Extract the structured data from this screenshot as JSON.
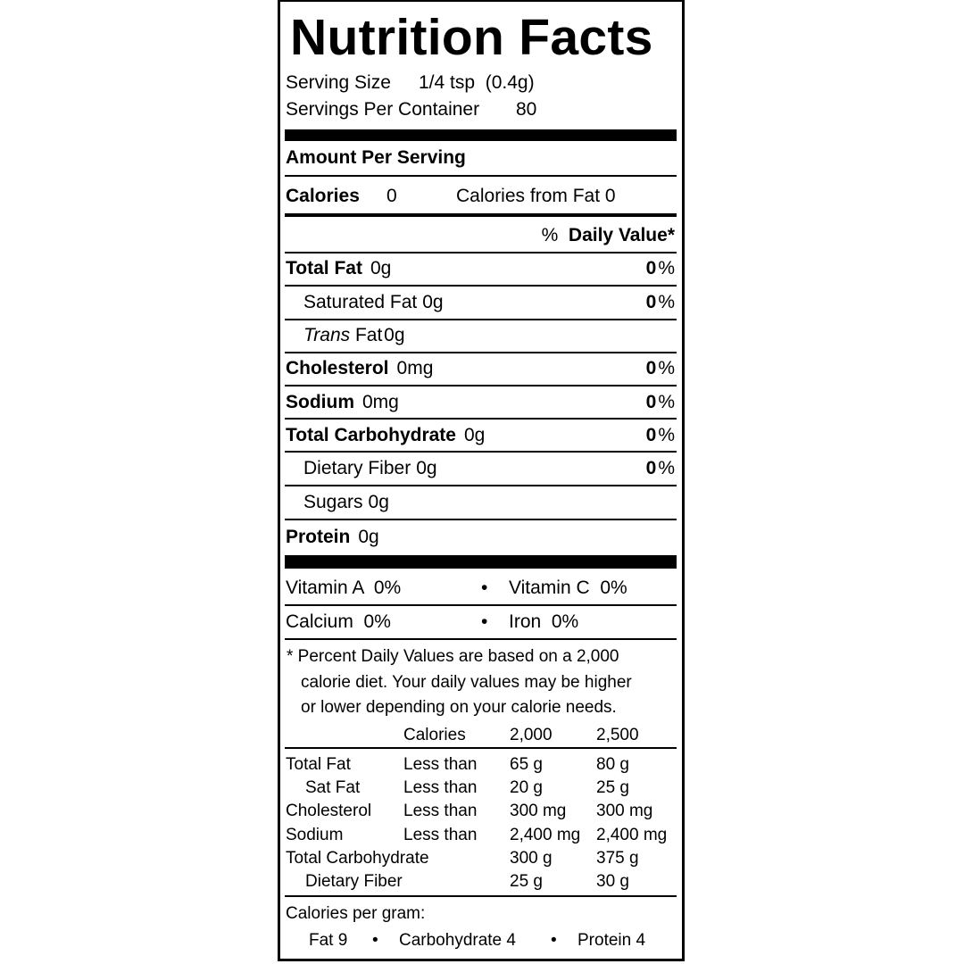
{
  "title": "Nutrition Facts",
  "serving_size_label": "Serving Size",
  "serving_size_value": "1/4 tsp  (0.4g)",
  "servings_label": "Servings Per Container",
  "servings_value": "80",
  "amount_per_serving": "Amount Per Serving",
  "calories_label": "Calories",
  "calories_value": "0",
  "calories_fat": "Calories from Fat 0",
  "dv_prefix": "%",
  "dv_header": "Daily Value*",
  "nutrients": [
    {
      "name": "Total Fat",
      "amount": "0g",
      "dv": "0",
      "bold": true
    },
    {
      "name": "Saturated Fat",
      "amount": "0g",
      "dv": "0",
      "bold": false
    },
    {
      "name": "Trans",
      "name2": "Fat",
      "amount": "0g",
      "dv": "",
      "bold": false
    },
    {
      "name": "Cholesterol",
      "amount": "0mg",
      "dv": "0",
      "bold": true
    },
    {
      "name": "Sodium",
      "amount": "0mg",
      "dv": "0",
      "bold": true
    },
    {
      "name": "Total Carbohydrate",
      "amount": "0g",
      "dv": "0",
      "bold": true
    },
    {
      "name": "Dietary Fiber",
      "amount": "0g",
      "dv": "0",
      "bold": false
    },
    {
      "name": "Sugars",
      "amount": "0g",
      "dv": "",
      "bold": false
    },
    {
      "name": "Protein",
      "amount": "0g",
      "dv": "",
      "bold": true
    }
  ],
  "pct": "%",
  "vitamins": [
    {
      "left": "Vitamin A  0%",
      "right": "Vitamin C  0%"
    },
    {
      "left": "Calcium  0%",
      "right": "Iron  0%"
    }
  ],
  "bullet": "•",
  "footnote": [
    "* Percent Daily Values are based on a 2,000",
    "calorie diet. Your daily values may be higher",
    "or lower depending on your calorie needs."
  ],
  "dv_table": {
    "header": [
      "",
      "Calories",
      "2,000",
      "2,500"
    ],
    "rows": [
      [
        "Total Fat",
        "Less than",
        "65 g",
        "80 g"
      ],
      [
        "Sat Fat",
        "Less than",
        "20 g",
        "25 g"
      ],
      [
        "Cholesterol",
        "Less than",
        "300 mg",
        "300 mg"
      ],
      [
        "Sodium",
        "Less than",
        "2,400 mg",
        "2,400 mg"
      ],
      [
        "Total Carbohydrate",
        "",
        "300 g",
        "375 g"
      ],
      [
        "Dietary Fiber",
        "",
        "25 g",
        "30 g"
      ]
    ]
  },
  "calories_per_gram_label": "Calories per gram:",
  "calories_per_gram": [
    "Fat 9",
    "Carbohydrate 4",
    "Protein 4"
  ]
}
